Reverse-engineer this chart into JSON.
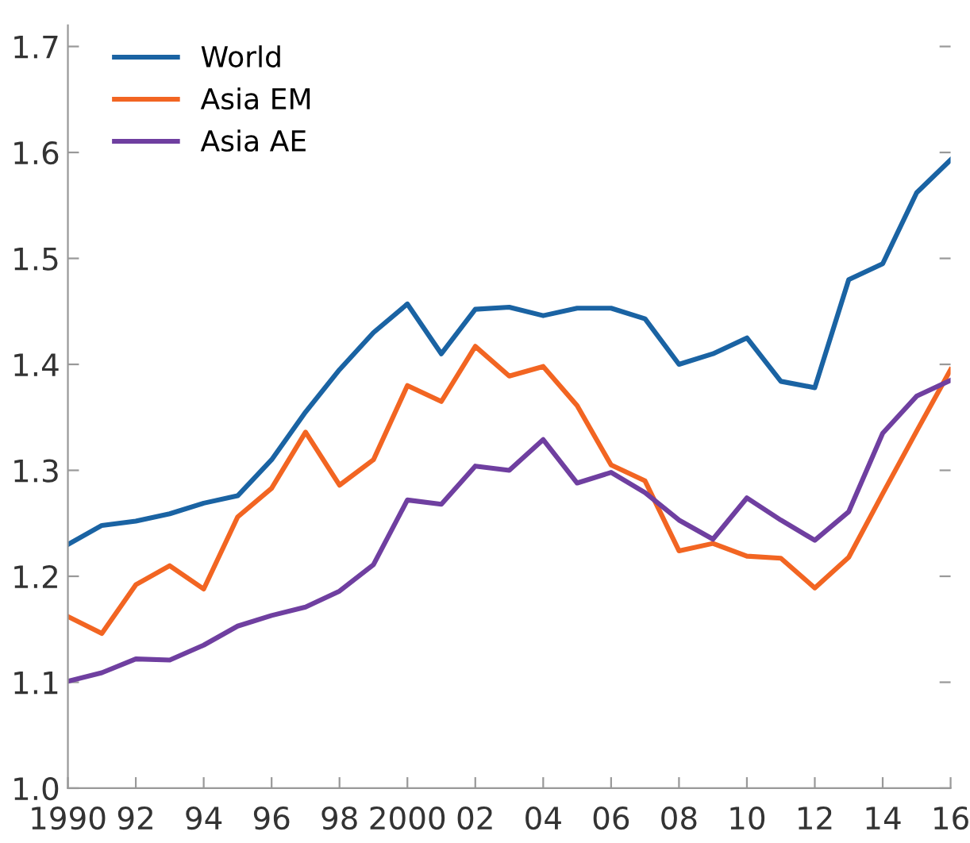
{
  "chart_data": {
    "type": "line",
    "x": [
      1990,
      1991,
      1992,
      1993,
      1994,
      1995,
      1996,
      1997,
      1998,
      1999,
      2000,
      2001,
      2002,
      2003,
      2004,
      2005,
      2006,
      2007,
      2008,
      2009,
      2010,
      2011,
      2012,
      2013,
      2014,
      2015,
      2016
    ],
    "series": [
      {
        "name": "World",
        "color": "#1a63a3",
        "values": [
          1.23,
          1.248,
          1.252,
          1.259,
          1.269,
          1.276,
          1.31,
          1.355,
          1.395,
          1.43,
          1.457,
          1.41,
          1.452,
          1.454,
          1.446,
          1.453,
          1.453,
          1.443,
          1.4,
          1.41,
          1.425,
          1.384,
          1.378,
          1.48,
          1.495,
          1.562,
          1.593
        ]
      },
      {
        "name": "Asia EM",
        "color": "#f26522",
        "values": [
          1.162,
          1.146,
          1.192,
          1.21,
          1.188,
          1.256,
          1.283,
          1.336,
          1.286,
          1.31,
          1.38,
          1.365,
          1.417,
          1.389,
          1.398,
          1.361,
          1.305,
          1.29,
          1.224,
          1.231,
          1.219,
          1.217,
          1.189,
          1.218,
          1.278,
          1.337,
          1.395
        ]
      },
      {
        "name": "Asia AE",
        "color": "#6f3fa0",
        "values": [
          1.101,
          1.109,
          1.122,
          1.121,
          1.135,
          1.153,
          1.163,
          1.171,
          1.186,
          1.211,
          1.272,
          1.268,
          1.304,
          1.3,
          1.329,
          1.288,
          1.298,
          1.279,
          1.253,
          1.235,
          1.274,
          1.253,
          1.234,
          1.261,
          1.335,
          1.37,
          1.385
        ]
      }
    ],
    "xlim": [
      1990,
      2016
    ],
    "xticks": [
      1990,
      {
        "value": 1992,
        "label": "92"
      },
      {
        "value": 1994,
        "label": "94"
      },
      {
        "value": 1996,
        "label": "96"
      },
      {
        "value": 1998,
        "label": "98"
      },
      2000,
      {
        "value": 2002,
        "label": "02"
      },
      {
        "value": 2004,
        "label": "04"
      },
      {
        "value": 2006,
        "label": "06"
      },
      {
        "value": 2008,
        "label": "08"
      },
      {
        "value": 2010,
        "label": "10"
      },
      {
        "value": 2012,
        "label": "12"
      },
      {
        "value": 2014,
        "label": "14"
      },
      {
        "value": 2016,
        "label": "16"
      }
    ],
    "ylim": [
      1.0,
      1.72
    ],
    "yticks": [
      {
        "value": 1.0,
        "label": "1.0"
      },
      {
        "value": 1.1,
        "label": "1.1"
      },
      {
        "value": 1.2,
        "label": "1.2"
      },
      {
        "value": 1.3,
        "label": "1.3"
      },
      {
        "value": 1.4,
        "label": "1.4"
      },
      {
        "value": 1.5,
        "label": "1.5"
      },
      {
        "value": 1.6,
        "label": "1.6"
      },
      {
        "value": 1.7,
        "label": "1.7"
      }
    ],
    "grid": false,
    "legend": "top left",
    "marker": "none",
    "line_style": "solid"
  }
}
